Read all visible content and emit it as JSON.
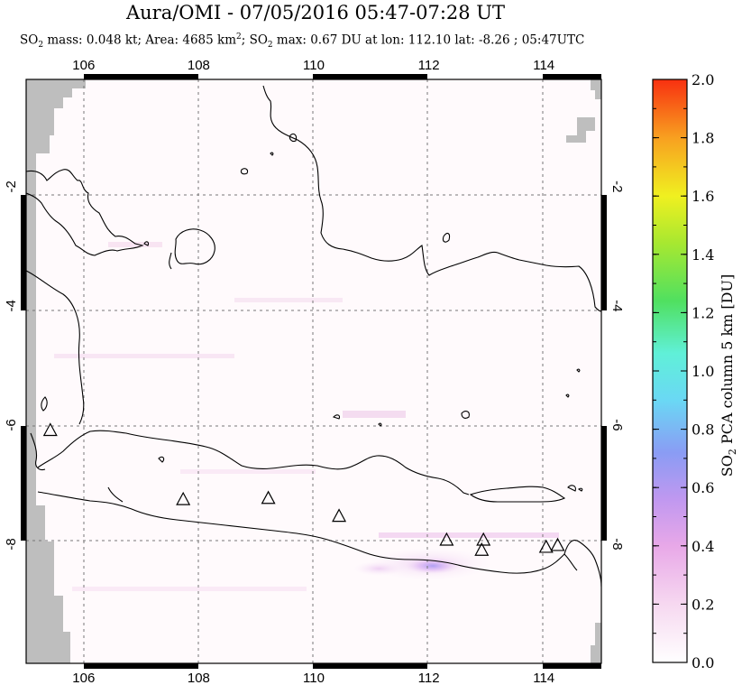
{
  "title": "Aura/OMI - 07/05/2016 05:47-07:28 UT",
  "subtitle": {
    "so2_prefix": "SO",
    "so2_sub": "2",
    "mass_text": " mass: 0.048 kt; Area: 4685 km",
    "area_sup": "2",
    "so2b_prefix": "; SO",
    "so2b_sub": "2",
    "max_text": " max: 0.67 DU at lon: 112.10 lat: -8.26 ; 05:47UTC"
  },
  "map": {
    "lon_range": [
      105.0,
      115.0
    ],
    "lat_range": [
      -10.0,
      -0.2
    ],
    "lon_ticks": [
      "106",
      "108",
      "110",
      "112",
      "114"
    ],
    "lat_ticks_left": [
      "-2",
      "-4",
      "-6",
      "-8"
    ],
    "lat_ticks_right": [
      "-2",
      "-4",
      "-6",
      "-8"
    ],
    "grid": "dashed",
    "volcanoes": [
      {
        "lon": 105.42,
        "lat": -6.1
      },
      {
        "lon": 107.73,
        "lat": -7.26
      },
      {
        "lon": 109.21,
        "lat": -7.24
      },
      {
        "lon": 110.44,
        "lat": -7.54
      },
      {
        "lon": 112.31,
        "lat": -7.94
      },
      {
        "lon": 112.92,
        "lat": -8.11
      },
      {
        "lon": 112.95,
        "lat": -7.94
      },
      {
        "lon": 114.04,
        "lat": -8.06
      },
      {
        "lon": 114.24,
        "lat": -8.03
      }
    ],
    "so2_max_location": {
      "lon": 112.1,
      "lat": -8.26
    }
  },
  "colorbar": {
    "label": "SO2 PCA column 5 km [DU]",
    "ticks": [
      "0.0",
      "0.2",
      "0.4",
      "0.6",
      "0.8",
      "1.0",
      "1.2",
      "1.4",
      "1.6",
      "1.8",
      "2.0"
    ],
    "min": 0.0,
    "max": 2.0
  },
  "colors": {
    "land_outline": "#000000",
    "no_data": "#bebebe",
    "background": "#fffafc"
  }
}
